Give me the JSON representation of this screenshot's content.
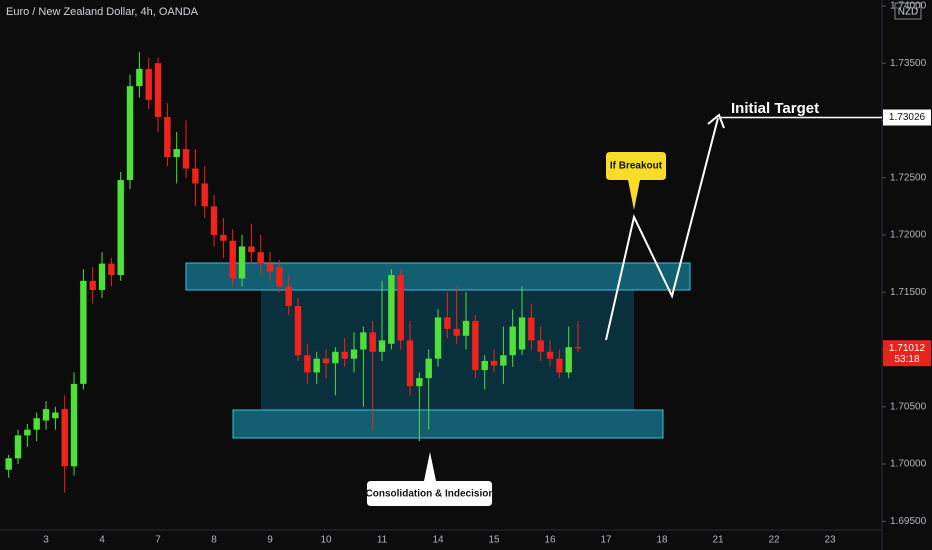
{
  "chart_data": {
    "type": "candlestick",
    "title": "Euro / New Zealand Dollar, 4h, OANDA",
    "currency": "NZD",
    "categories": [
      null,
      null,
      null,
      null,
      "3",
      null,
      null,
      null,
      null,
      null,
      "4",
      null,
      null,
      null,
      null,
      null,
      "7",
      null,
      null,
      null,
      null,
      null,
      "8",
      null,
      null,
      null,
      null,
      null,
      "9",
      null,
      null,
      null,
      null,
      null,
      "10",
      null,
      null,
      null,
      null,
      null,
      "11",
      null,
      null,
      null,
      null,
      null,
      "14",
      null,
      null,
      null,
      null,
      null,
      "15",
      null,
      null,
      null,
      null,
      null,
      "16",
      null,
      null,
      null,
      null,
      null,
      "17",
      null,
      null,
      null,
      null,
      null,
      "18",
      null,
      null,
      null,
      null,
      null,
      "21",
      null,
      null,
      null,
      null,
      null,
      "22",
      null,
      null,
      null,
      null,
      null,
      "23",
      null,
      null,
      null,
      null,
      null
    ],
    "open": [
      1.6995,
      1.7005,
      1.7025,
      1.703,
      1.7038,
      1.704,
      1.7048,
      1.6998,
      1.707,
      1.716,
      1.7152,
      1.7175,
      1.7165,
      1.7248,
      1.733,
      1.7345,
      1.735,
      1.7303,
      1.7268,
      1.7275,
      1.7258,
      1.7245,
      1.7225,
      1.72,
      1.7195,
      1.7162,
      1.719,
      1.7185,
      1.7175,
      1.7172,
      1.7155,
      1.7138,
      1.7095,
      1.708,
      1.7092,
      1.7088,
      1.7098,
      1.7092,
      1.71,
      1.7115,
      1.7098,
      1.7105,
      1.7165,
      1.7108,
      1.7068,
      1.7075,
      1.7092,
      1.7128,
      1.7118,
      1.7112,
      1.7125,
      1.7082,
      1.709,
      1.7086,
      1.7095,
      1.71,
      1.7128,
      1.7108,
      1.7098,
      1.7092,
      1.708,
      1.7102,
      null,
      null,
      null,
      null,
      null,
      null,
      null,
      null,
      null,
      null,
      null,
      null,
      null,
      null,
      null,
      null,
      null,
      null,
      null,
      null,
      null,
      null,
      null,
      null,
      null,
      null,
      null,
      null,
      null,
      null,
      null,
      null
    ],
    "high": [
      1.7008,
      1.703,
      1.7035,
      1.7045,
      1.7055,
      1.705,
      1.706,
      1.708,
      1.717,
      1.7172,
      1.7185,
      1.718,
      1.7255,
      1.734,
      1.736,
      1.7355,
      1.7355,
      1.7315,
      1.729,
      1.73,
      1.7275,
      1.726,
      1.7235,
      1.7215,
      1.7205,
      1.72,
      1.721,
      1.72,
      1.7185,
      1.7178,
      1.7165,
      1.7145,
      1.7105,
      1.7098,
      1.71,
      1.7102,
      1.711,
      1.7115,
      1.712,
      1.7125,
      1.716,
      1.717,
      1.717,
      1.7125,
      1.708,
      1.71,
      1.7135,
      1.715,
      1.7155,
      1.715,
      1.713,
      1.7095,
      1.71,
      1.712,
      1.7135,
      1.7155,
      1.714,
      1.712,
      1.7108,
      1.71,
      1.712,
      1.7125,
      null,
      null,
      null,
      null,
      null,
      null,
      null,
      null,
      null,
      null,
      null,
      null,
      null,
      null,
      null,
      null,
      null,
      null,
      null,
      null,
      null,
      null,
      null,
      null,
      null,
      null,
      null,
      null,
      null,
      null,
      null,
      null
    ],
    "low": [
      1.6988,
      1.7,
      1.7015,
      1.702,
      1.703,
      1.703,
      1.6975,
      1.699,
      1.7065,
      1.714,
      1.7145,
      1.7155,
      1.716,
      1.724,
      1.732,
      1.731,
      1.729,
      1.726,
      1.7245,
      1.725,
      1.7225,
      1.7215,
      1.719,
      1.718,
      1.7155,
      1.7155,
      1.7175,
      1.7165,
      1.716,
      1.715,
      1.713,
      1.709,
      1.707,
      1.707,
      1.7075,
      1.706,
      1.7085,
      1.708,
      1.705,
      1.703,
      1.709,
      1.71,
      1.71,
      1.706,
      1.702,
      1.703,
      1.7085,
      1.711,
      1.7105,
      1.71,
      1.7075,
      1.7065,
      1.708,
      1.707,
      1.7085,
      1.7095,
      1.71,
      1.709,
      1.7085,
      1.7075,
      1.7075,
      1.7098,
      null,
      null,
      null,
      null,
      null,
      null,
      null,
      null,
      null,
      null,
      null,
      null,
      null,
      null,
      null,
      null,
      null,
      null,
      null,
      null,
      null,
      null,
      null,
      null,
      null,
      null,
      null,
      null,
      null,
      null,
      null,
      null
    ],
    "close": [
      1.7005,
      1.7025,
      1.703,
      1.704,
      1.7048,
      1.7045,
      1.6998,
      1.707,
      1.716,
      1.7152,
      1.7175,
      1.7165,
      1.7248,
      1.733,
      1.7345,
      1.7318,
      1.7303,
      1.7268,
      1.7275,
      1.7258,
      1.7245,
      1.7225,
      1.72,
      1.7195,
      1.7162,
      1.719,
      1.7185,
      1.7175,
      1.7168,
      1.7155,
      1.7138,
      1.7095,
      1.708,
      1.7092,
      1.7088,
      1.7098,
      1.7092,
      1.71,
      1.7115,
      1.7098,
      1.7108,
      1.7165,
      1.7108,
      1.7068,
      1.7075,
      1.7092,
      1.7128,
      1.7118,
      1.7112,
      1.7125,
      1.7082,
      1.709,
      1.7086,
      1.7095,
      1.712,
      1.7128,
      1.7108,
      1.7098,
      1.7092,
      1.708,
      1.7102,
      1.7101,
      null,
      null,
      null,
      null,
      null,
      null,
      null,
      null,
      null,
      null,
      null,
      null,
      null,
      null,
      null,
      null,
      null,
      null,
      null,
      null,
      null,
      null,
      null,
      null,
      null,
      null,
      null,
      null,
      null,
      null,
      null,
      null
    ],
    "up_color": "#4fe03a",
    "down_color": "#f0231d",
    "ylim": [
      1.69424,
      1.74052
    ],
    "yticks": [
      {
        "value": 1.695,
        "label": "1.69500"
      },
      {
        "value": 1.7,
        "label": "1.70000"
      },
      {
        "value": 1.705,
        "label": "1.70500"
      },
      {
        "value": 1.71,
        "label": "1.71000"
      },
      {
        "value": 1.715,
        "label": "1.71500"
      },
      {
        "value": 1.72,
        "label": "1.72000"
      },
      {
        "value": 1.725,
        "label": "1.72500"
      },
      {
        "value": 1.73,
        "label": "1.73000"
      },
      {
        "value": 1.735,
        "label": "1.73500"
      },
      {
        "value": 1.74,
        "label": "1.74000"
      }
    ],
    "grid": false,
    "last_price": {
      "value": 1.71012,
      "label": "1.71012"
    },
    "countdown": "53:18",
    "target": {
      "value": 1.73026,
      "label": "1.73026"
    },
    "annotations": [
      "Initial Target",
      "If Breakout",
      "Consolidation & Indecision"
    ]
  }
}
